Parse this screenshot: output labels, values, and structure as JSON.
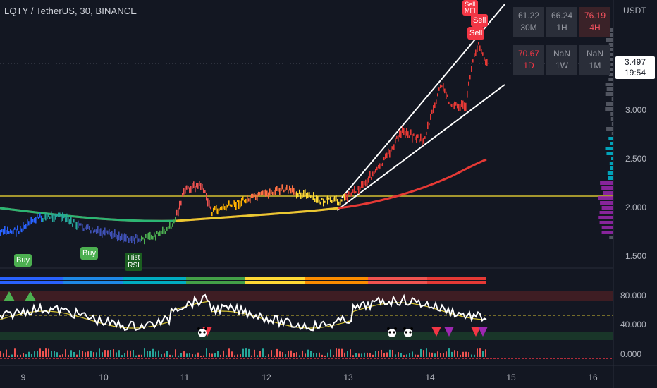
{
  "header": {
    "symbol_title": "LQTY / TetherUS, 30, BINANCE",
    "currency": "USDT"
  },
  "price_axis": {
    "labels": [
      "3.000",
      "2.500",
      "2.000",
      "1.500"
    ],
    "current_price": "3.497",
    "countdown": "19:54"
  },
  "oscillator_axis": {
    "labels": [
      "80.000",
      "40.000",
      "0.000"
    ]
  },
  "time_axis": {
    "labels": [
      "9",
      "10",
      "11",
      "12",
      "13",
      "14",
      "15",
      "16"
    ]
  },
  "mtf_table": [
    {
      "value": "61.22",
      "tf": "30M",
      "state": "neutral"
    },
    {
      "value": "66.24",
      "tf": "1H",
      "state": "neutral"
    },
    {
      "value": "76.19",
      "tf": "4H",
      "state": "hot-strong"
    },
    {
      "value": "70.67",
      "tf": "1D",
      "state": "hot"
    },
    {
      "value": "NaN",
      "tf": "1W",
      "state": "neutral"
    },
    {
      "value": "NaN",
      "tf": "1M",
      "state": "neutral"
    }
  ],
  "signals": {
    "buy_label": "Buy",
    "sell_label": "Sell",
    "hist_label": "Hist",
    "rsi_label": "RSI",
    "mfi_label": "MFI"
  },
  "colors": {
    "background": "#131722",
    "horizontal_level": "#d4c132",
    "wedge_lines": "#ffffff",
    "moving_average": "#e53935",
    "oscillator_line": "#ffffff",
    "oscillator_signal": "#d4c132",
    "overbought_zone": "#4a1f24",
    "oversold_zone": "#1b3a2a",
    "sell_triangle": "#f23645",
    "alt_triangle": "#9c27b0",
    "buy_triangle": "#4caf50"
  }
}
